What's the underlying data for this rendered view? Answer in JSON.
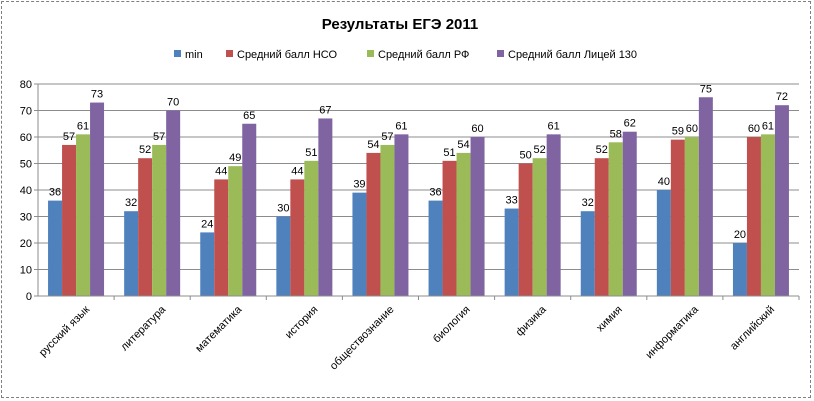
{
  "chart_data": {
    "type": "bar",
    "title": "Результаты ЕГЭ 2011",
    "xlabel": "",
    "ylabel": "",
    "ylim": [
      0,
      80
    ],
    "yticks": [
      0,
      10,
      20,
      30,
      40,
      50,
      60,
      70,
      80
    ],
    "grid": true,
    "legend_position": "top",
    "categories": [
      "русский язык",
      "литература",
      "математика",
      "история",
      "обществознание",
      "биология",
      "физика",
      "химия",
      "информатика",
      "английский"
    ],
    "series": [
      {
        "name": "min",
        "color": "#4f81bd",
        "values": [
          36,
          32,
          24,
          30,
          39,
          36,
          33,
          32,
          40,
          20
        ]
      },
      {
        "name": "Средний балл НСО",
        "color": "#c0504d",
        "values": [
          57,
          52,
          44,
          44,
          54,
          51,
          50,
          52,
          59,
          60
        ]
      },
      {
        "name": "Средний балл РФ",
        "color": "#9bbb59",
        "values": [
          61,
          57,
          49,
          51,
          57,
          54,
          52,
          58,
          60,
          61
        ]
      },
      {
        "name": "Средний балл Лицей 130",
        "color": "#8064a2",
        "values": [
          73,
          70,
          65,
          67,
          61,
          60,
          61,
          62,
          75,
          72
        ]
      }
    ],
    "data_labels": [
      [
        "36",
        "32",
        "24",
        "30",
        "39",
        "36",
        "33",
        "32",
        "40",
        "20"
      ],
      [
        "57",
        "52",
        "44",
        "44",
        "54",
        "51",
        "50",
        "52",
        "59",
        "60"
      ],
      [
        "61",
        "57",
        "49",
        "51",
        "57",
        "54",
        "52",
        "58",
        "60",
        "61"
      ],
      [
        "73",
        "70",
        "65",
        "67",
        "61",
        "60",
        "61",
        "62",
        "75",
        "72"
      ]
    ]
  }
}
